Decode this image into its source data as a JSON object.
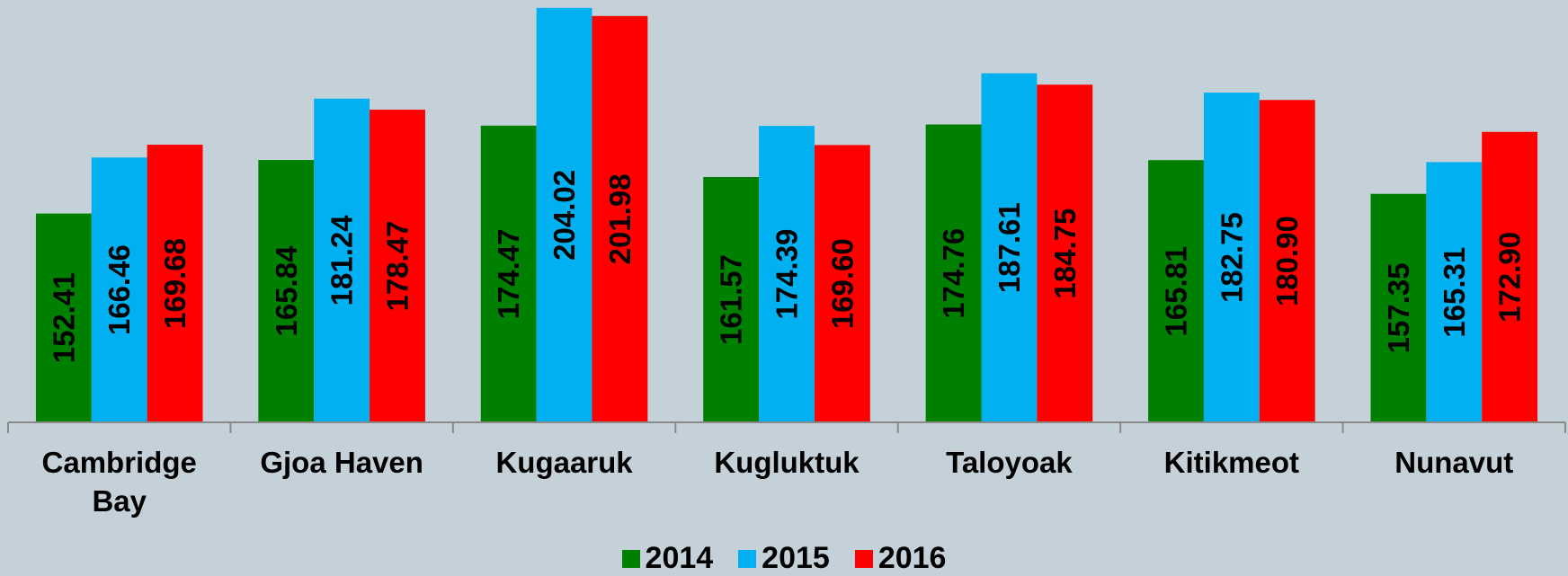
{
  "chart_data": {
    "type": "bar",
    "categories": [
      "Cambridge Bay",
      "Gjoa Haven",
      "Kugaaruk",
      "Kugluktuk",
      "Taloyoak",
      "Kitikmeot",
      "Nunavut"
    ],
    "series": [
      {
        "name": "2014",
        "color": "#008000",
        "values": [
          152.41,
          165.84,
          174.47,
          161.57,
          174.76,
          165.81,
          157.35
        ],
        "value_labels": [
          "152.41",
          "165.84",
          "174.47",
          "161.57",
          "174.76",
          "165.81",
          "157.35"
        ]
      },
      {
        "name": "2015",
        "color": "#00b0f0",
        "values": [
          166.46,
          181.24,
          204.02,
          174.39,
          187.61,
          182.75,
          165.31
        ],
        "value_labels": [
          "166.46",
          "181.24",
          "204.02",
          "174.39",
          "187.61",
          "182.75",
          "165.31"
        ]
      },
      {
        "name": "2016",
        "color": "#ff0000",
        "values": [
          169.68,
          178.47,
          201.98,
          169.6,
          184.75,
          180.9,
          172.9
        ],
        "value_labels": [
          "169.68",
          "178.47",
          "201.98",
          "169.60",
          "184.75",
          "180.90",
          "172.90"
        ]
      }
    ],
    "ylim": [
      100,
      206
    ]
  }
}
